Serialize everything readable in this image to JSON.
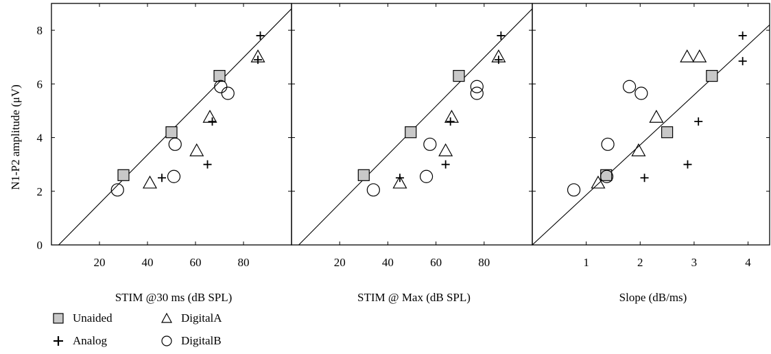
{
  "ylabel": "N1-P2 amplitude (μV)",
  "colors": {
    "unaided_fill": "#c8c8c8",
    "stroke": "#000000"
  },
  "legend": {
    "unaided": "Unaided",
    "analog": "Analog",
    "digitalA": "DigitalA",
    "digitalB": "DigitalB"
  },
  "chart_data": [
    {
      "type": "scatter",
      "xlabel": "STIM @30 ms (dB SPL)",
      "ylabel": "N1-P2 amplitude (μV)",
      "xlim": [
        0,
        100
      ],
      "ylim": [
        0,
        9
      ],
      "xticks": [
        20,
        40,
        60,
        80
      ],
      "yticks": [
        0,
        2,
        4,
        6,
        8
      ],
      "fit_line": [
        [
          3,
          0
        ],
        [
          100,
          8.8
        ]
      ],
      "series": [
        {
          "name": "Unaided",
          "x": [
            30,
            50,
            70
          ],
          "y": [
            2.6,
            4.2,
            6.3
          ]
        },
        {
          "name": "Analog",
          "x": [
            46,
            65,
            67,
            86,
            87
          ],
          "y": [
            2.5,
            3.0,
            4.6,
            6.9,
            7.8
          ]
        },
        {
          "name": "DigitalA",
          "x": [
            41,
            60.5,
            66,
            86
          ],
          "y": [
            2.3,
            3.5,
            4.75,
            7.0
          ]
        },
        {
          "name": "DigitalB",
          "x": [
            27.5,
            51,
            51.5,
            70.5,
            73.5
          ],
          "y": [
            2.05,
            2.55,
            3.75,
            5.9,
            5.65
          ]
        }
      ]
    },
    {
      "type": "scatter",
      "xlabel": "STIM @ Max (dB SPL)",
      "xlim": [
        0,
        100
      ],
      "ylim": [
        0,
        9
      ],
      "xticks": [
        20,
        40,
        60,
        80
      ],
      "yticks": [
        0,
        2,
        4,
        6,
        8
      ],
      "fit_line": [
        [
          3,
          0
        ],
        [
          100,
          8.8
        ]
      ],
      "series": [
        {
          "name": "Unaided",
          "x": [
            30,
            49.5,
            69.5
          ],
          "y": [
            2.6,
            4.2,
            6.3
          ]
        },
        {
          "name": "Analog",
          "x": [
            45,
            64,
            66,
            86,
            87
          ],
          "y": [
            2.5,
            3.0,
            4.6,
            6.9,
            7.8
          ]
        },
        {
          "name": "DigitalA",
          "x": [
            45,
            64,
            66.5,
            86
          ],
          "y": [
            2.3,
            3.5,
            4.75,
            7.0
          ]
        },
        {
          "name": "DigitalB",
          "x": [
            34,
            56,
            57.5,
            77,
            77
          ],
          "y": [
            2.05,
            2.55,
            3.75,
            5.9,
            5.65
          ]
        }
      ]
    },
    {
      "type": "scatter",
      "xlabel": "Slope (dB/ms)",
      "xlim": [
        0,
        4.4
      ],
      "ylim": [
        0,
        9
      ],
      "xticks": [
        1,
        2,
        3,
        4
      ],
      "yticks": [
        0,
        2,
        4,
        6,
        8
      ],
      "fit_line": [
        [
          0,
          0
        ],
        [
          4.4,
          8.2
        ]
      ],
      "series": [
        {
          "name": "Unaided",
          "x": [
            1.37,
            2.5,
            3.33
          ],
          "y": [
            2.6,
            4.2,
            6.3
          ]
        },
        {
          "name": "Analog",
          "x": [
            2.08,
            2.88,
            3.08,
            3.9,
            3.9
          ],
          "y": [
            2.5,
            3.0,
            4.6,
            6.85,
            7.8
          ]
        },
        {
          "name": "DigitalA",
          "x": [
            1.22,
            1.97,
            2.3,
            2.87,
            3.1
          ],
          "y": [
            2.3,
            3.5,
            4.75,
            7.0,
            7.0
          ]
        },
        {
          "name": "DigitalB",
          "x": [
            0.77,
            1.38,
            1.4,
            1.8,
            2.02
          ],
          "y": [
            2.05,
            2.55,
            3.75,
            5.9,
            5.65
          ]
        }
      ]
    }
  ]
}
